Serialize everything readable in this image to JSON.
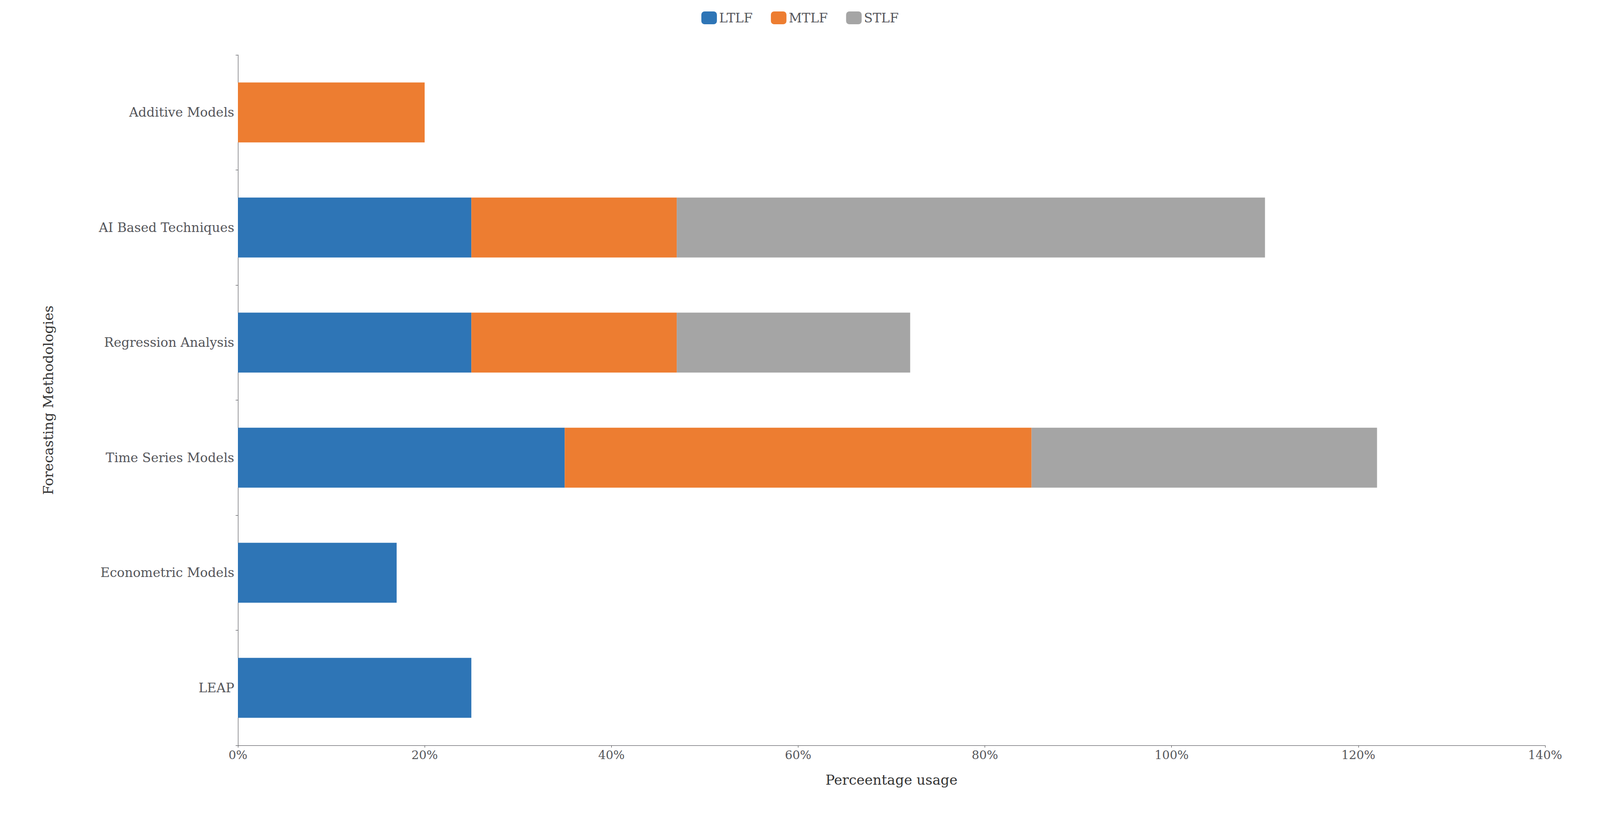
{
  "chart_data": {
    "type": "bar",
    "orientation": "horizontal",
    "stacked": true,
    "categories": [
      "LEAP",
      "Econometric Models",
      "Time Series Models",
      "Regression Analysis",
      "AI Based Techniques",
      "Additive Models"
    ],
    "series": [
      {
        "name": "LTLF",
        "color": "#2E75B6",
        "values": [
          25,
          17,
          35,
          25,
          25,
          0
        ]
      },
      {
        "name": "MTLF",
        "color": "#ED7D31",
        "values": [
          0,
          0,
          50,
          22,
          22,
          20
        ]
      },
      {
        "name": "STLF",
        "color": "#A5A5A5",
        "values": [
          0,
          0,
          37,
          25,
          63,
          0
        ]
      }
    ],
    "xlabel": "Perceentage usage",
    "ylabel": "Forecasting Methodologies",
    "xlim": [
      0,
      140
    ],
    "xticks": [
      {
        "value": 0,
        "label": "0%"
      },
      {
        "value": 20,
        "label": "20%"
      },
      {
        "value": 40,
        "label": "40%"
      },
      {
        "value": 60,
        "label": "60%"
      },
      {
        "value": 80,
        "label": "80%"
      },
      {
        "value": 100,
        "label": "100%"
      },
      {
        "value": 120,
        "label": "120%"
      },
      {
        "value": 140,
        "label": "140%"
      }
    ],
    "legend": "top",
    "grid": false
  }
}
